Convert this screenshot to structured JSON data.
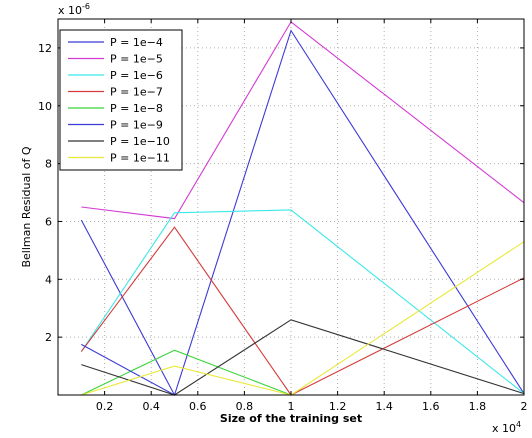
{
  "chart_data": {
    "type": "line",
    "xlabel": "Size of the training set",
    "ylabel": "Bellman Residual of Q",
    "x_multiplier": "x 10",
    "x_exponent": "4",
    "y_multiplier": "x 10",
    "y_exponent": "-6",
    "xlim": [
      0,
      20000
    ],
    "ylim": [
      0,
      13
    ],
    "xticks": [
      2000,
      4000,
      6000,
      8000,
      10000,
      12000,
      14000,
      16000,
      18000,
      20000
    ],
    "xtick_labels": [
      "0.2",
      "0.4",
      "0.6",
      "0.8",
      "1",
      "1.2",
      "1.4",
      "1.6",
      "1.8",
      "2"
    ],
    "yticks": [
      2,
      4,
      6,
      8,
      10,
      12
    ],
    "ytick_labels": [
      "2",
      "4",
      "6",
      "8",
      "10",
      "12"
    ],
    "grid": true,
    "legend_position": "top-left",
    "x": [
      1000,
      5000,
      10000,
      20000
    ],
    "series": [
      {
        "name": "P = 1e−4",
        "color": "#3b3bd6",
        "values": [
          6.05,
          0.0,
          12.6,
          0.05
        ]
      },
      {
        "name": "P = 1e−5",
        "color": "#d43bd4",
        "values": [
          6.5,
          6.1,
          12.9,
          6.65
        ]
      },
      {
        "name": "P = 1e−6",
        "color": "#3be8e8",
        "values": [
          1.5,
          6.3,
          6.4,
          0.05
        ]
      },
      {
        "name": "P = 1e−7",
        "color": "#d43b3b",
        "values": [
          1.5,
          5.8,
          0.0,
          4.05
        ]
      },
      {
        "name": "P = 1e−8",
        "color": "#3bd43b",
        "values": [
          0.0,
          1.55,
          0.0,
          0.0
        ]
      },
      {
        "name": "P = 1e−9",
        "color": "#3b3bd6",
        "values": [
          1.75,
          0.0,
          0.0,
          0.0
        ]
      },
      {
        "name": "P = 1e−10",
        "color": "#333333",
        "values": [
          1.05,
          0.0,
          2.6,
          0.05
        ]
      },
      {
        "name": "P = 1e−11",
        "color": "#e8e83b",
        "values": [
          0.0,
          1.0,
          0.0,
          5.3
        ]
      }
    ]
  }
}
